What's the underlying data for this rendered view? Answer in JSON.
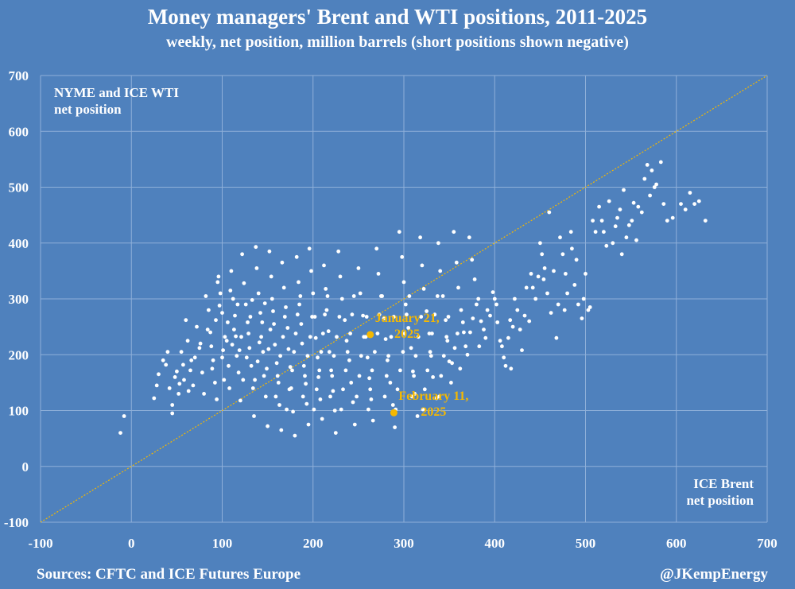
{
  "chart_data": {
    "type": "scatter",
    "title": "Money managers' Brent and WTI positions, 2011-2025",
    "subtitle": "weekly, net position, million barrels (short positions shown negative)",
    "xlabel_lines": [
      "ICE Brent",
      "net position"
    ],
    "ylabel_lines": [
      "NYME and ICE WTI",
      "net position"
    ],
    "xlim": [
      -100,
      700
    ],
    "ylim": [
      -100,
      700
    ],
    "x_ticks": [
      "-100",
      "0",
      "100",
      "200",
      "300",
      "400",
      "500",
      "600",
      "700"
    ],
    "y_ticks": [
      "-100",
      "0",
      "100",
      "200",
      "300",
      "400",
      "500",
      "600",
      "700"
    ],
    "grid": true,
    "reference_line": {
      "from": [
        -100,
        -100
      ],
      "to": [
        700,
        700
      ],
      "color": "#f5b800",
      "style": "dotted"
    },
    "point_color": "#ffffff",
    "highlight_color": "#f5b800",
    "highlights": [
      {
        "x": 263,
        "y": 236,
        "lines": [
          "January 21,",
          "2025"
        ]
      },
      {
        "x": 289,
        "y": 96,
        "lines": [
          "February 11,",
          "2025"
        ]
      }
    ],
    "points": [
      [
        -12,
        60
      ],
      [
        -8,
        90
      ],
      [
        25,
        122
      ],
      [
        28,
        145
      ],
      [
        30,
        165
      ],
      [
        35,
        190
      ],
      [
        40,
        205
      ],
      [
        42,
        140
      ],
      [
        45,
        110
      ],
      [
        45,
        95
      ],
      [
        50,
        170
      ],
      [
        52,
        130
      ],
      [
        55,
        205
      ],
      [
        57,
        182
      ],
      [
        58,
        155
      ],
      [
        60,
        262
      ],
      [
        62,
        225
      ],
      [
        65,
        172
      ],
      [
        68,
        145
      ],
      [
        70,
        195
      ],
      [
        72,
        250
      ],
      [
        75,
        212
      ],
      [
        78,
        168
      ],
      [
        80,
        130
      ],
      [
        82,
        305
      ],
      [
        85,
        280
      ],
      [
        87,
        240
      ],
      [
        88,
        215
      ],
      [
        90,
        190
      ],
      [
        92,
        150
      ],
      [
        94,
        120
      ],
      [
        95,
        330
      ],
      [
        96,
        340
      ],
      [
        98,
        310
      ],
      [
        100,
        275
      ],
      [
        100,
        195
      ],
      [
        102,
        155
      ],
      [
        105,
        225
      ],
      [
        107,
        180
      ],
      [
        108,
        140
      ],
      [
        110,
        350
      ],
      [
        112,
        300
      ],
      [
        114,
        270
      ],
      [
        115,
        233
      ],
      [
        116,
        198
      ],
      [
        118,
        168
      ],
      [
        120,
        118
      ],
      [
        122,
        380
      ],
      [
        124,
        328
      ],
      [
        126,
        290
      ],
      [
        128,
        258
      ],
      [
        130,
        212
      ],
      [
        132,
        180
      ],
      [
        134,
        140
      ],
      [
        135,
        90
      ],
      [
        137,
        393
      ],
      [
        138,
        355
      ],
      [
        140,
        310
      ],
      [
        142,
        275
      ],
      [
        143,
        232
      ],
      [
        145,
        205
      ],
      [
        146,
        162
      ],
      [
        148,
        125
      ],
      [
        150,
        72
      ],
      [
        152,
        385
      ],
      [
        154,
        340
      ],
      [
        155,
        300
      ],
      [
        157,
        255
      ],
      [
        158,
        218
      ],
      [
        160,
        185
      ],
      [
        162,
        150
      ],
      [
        163,
        110
      ],
      [
        165,
        65
      ],
      [
        166,
        365
      ],
      [
        168,
        320
      ],
      [
        170,
        285
      ],
      [
        172,
        248
      ],
      [
        173,
        210
      ],
      [
        175,
        178
      ],
      [
        176,
        140
      ],
      [
        178,
        98
      ],
      [
        180,
        55
      ],
      [
        182,
        375
      ],
      [
        184,
        330
      ],
      [
        185,
        290
      ],
      [
        187,
        255
      ],
      [
        188,
        220
      ],
      [
        190,
        180
      ],
      [
        192,
        148
      ],
      [
        193,
        112
      ],
      [
        195,
        75
      ],
      [
        196,
        390
      ],
      [
        198,
        350
      ],
      [
        200,
        310
      ],
      [
        202,
        268
      ],
      [
        203,
        230
      ],
      [
        205,
        195
      ],
      [
        206,
        160
      ],
      [
        208,
        120
      ],
      [
        210,
        85
      ],
      [
        212,
        360
      ],
      [
        214,
        318
      ],
      [
        215,
        280
      ],
      [
        217,
        242
      ],
      [
        218,
        205
      ],
      [
        220,
        172
      ],
      [
        222,
        135
      ],
      [
        224,
        100
      ],
      [
        225,
        60
      ],
      [
        228,
        385
      ],
      [
        230,
        340
      ],
      [
        232,
        300
      ],
      [
        235,
        262
      ],
      [
        237,
        225
      ],
      [
        240,
        190
      ],
      [
        242,
        150
      ],
      [
        244,
        115
      ],
      [
        246,
        75
      ],
      [
        250,
        355
      ],
      [
        252,
        310
      ],
      [
        255,
        270
      ],
      [
        258,
        232
      ],
      [
        260,
        195
      ],
      [
        262,
        158
      ],
      [
        264,
        120
      ],
      [
        266,
        82
      ],
      [
        270,
        390
      ],
      [
        272,
        345
      ],
      [
        275,
        305
      ],
      [
        278,
        265
      ],
      [
        280,
        228
      ],
      [
        282,
        190
      ],
      [
        285,
        150
      ],
      [
        288,
        110
      ],
      [
        290,
        70
      ],
      [
        295,
        420
      ],
      [
        298,
        375
      ],
      [
        300,
        330
      ],
      [
        302,
        290
      ],
      [
        305,
        248
      ],
      [
        308,
        212
      ],
      [
        310,
        170
      ],
      [
        312,
        130
      ],
      [
        315,
        90
      ],
      [
        318,
        410
      ],
      [
        320,
        360
      ],
      [
        322,
        318
      ],
      [
        325,
        278
      ],
      [
        328,
        238
      ],
      [
        330,
        198
      ],
      [
        332,
        160
      ],
      [
        336,
        122
      ],
      [
        338,
        400
      ],
      [
        340,
        350
      ],
      [
        343,
        305
      ],
      [
        346,
        262
      ],
      [
        348,
        225
      ],
      [
        350,
        188
      ],
      [
        352,
        150
      ],
      [
        355,
        420
      ],
      [
        358,
        365
      ],
      [
        360,
        320
      ],
      [
        363,
        280
      ],
      [
        366,
        240
      ],
      [
        370,
        200
      ],
      [
        372,
        410
      ],
      [
        375,
        370
      ],
      [
        378,
        335
      ],
      [
        382,
        300
      ],
      [
        385,
        260
      ],
      [
        390,
        230
      ],
      [
        395,
        270
      ],
      [
        400,
        300
      ],
      [
        403,
        258
      ],
      [
        406,
        225
      ],
      [
        410,
        195
      ],
      [
        415,
        230
      ],
      [
        418,
        175
      ],
      [
        420,
        250
      ],
      [
        425,
        280
      ],
      [
        430,
        208
      ],
      [
        435,
        320
      ],
      [
        438,
        260
      ],
      [
        440,
        345
      ],
      [
        445,
        300
      ],
      [
        450,
        400
      ],
      [
        452,
        380
      ],
      [
        455,
        355
      ],
      [
        458,
        310
      ],
      [
        460,
        455
      ],
      [
        462,
        275
      ],
      [
        468,
        230
      ],
      [
        472,
        410
      ],
      [
        475,
        380
      ],
      [
        478,
        345
      ],
      [
        480,
        310
      ],
      [
        484,
        420
      ],
      [
        488,
        325
      ],
      [
        492,
        290
      ],
      [
        496,
        265
      ],
      [
        500,
        345
      ],
      [
        505,
        285
      ],
      [
        508,
        440
      ],
      [
        515,
        465
      ],
      [
        520,
        420
      ],
      [
        526,
        475
      ],
      [
        530,
        400
      ],
      [
        535,
        445
      ],
      [
        540,
        380
      ],
      [
        542,
        495
      ],
      [
        548,
        432
      ],
      [
        553,
        472
      ],
      [
        558,
        465
      ],
      [
        565,
        515
      ],
      [
        568,
        540
      ],
      [
        573,
        530
      ],
      [
        578,
        505
      ],
      [
        583,
        545
      ],
      [
        590,
        440
      ],
      [
        610,
        460
      ],
      [
        615,
        490
      ],
      [
        620,
        470
      ],
      [
        632,
        440
      ],
      [
        38,
        182
      ],
      [
        48,
        160
      ],
      [
        53,
        148
      ],
      [
        63,
        135
      ],
      [
        66,
        190
      ],
      [
        76,
        220
      ],
      [
        84,
        245
      ],
      [
        89,
        175
      ],
      [
        93,
        262
      ],
      [
        97,
        288
      ],
      [
        101,
        208
      ],
      [
        103,
        232
      ],
      [
        106,
        258
      ],
      [
        109,
        315
      ],
      [
        111,
        218
      ],
      [
        113,
        245
      ],
      [
        117,
        290
      ],
      [
        119,
        208
      ],
      [
        121,
        232
      ],
      [
        123,
        155
      ],
      [
        127,
        195
      ],
      [
        129,
        238
      ],
      [
        131,
        268
      ],
      [
        133,
        298
      ],
      [
        136,
        155
      ],
      [
        139,
        188
      ],
      [
        141,
        222
      ],
      [
        144,
        258
      ],
      [
        147,
        292
      ],
      [
        149,
        175
      ],
      [
        151,
        210
      ],
      [
        153,
        245
      ],
      [
        156,
        278
      ],
      [
        159,
        125
      ],
      [
        161,
        162
      ],
      [
        164,
        198
      ],
      [
        167,
        232
      ],
      [
        169,
        268
      ],
      [
        171,
        102
      ],
      [
        174,
        138
      ],
      [
        177,
        172
      ],
      [
        179,
        205
      ],
      [
        181,
        238
      ],
      [
        183,
        272
      ],
      [
        186,
        305
      ],
      [
        189,
        125
      ],
      [
        191,
        162
      ],
      [
        194,
        198
      ],
      [
        197,
        232
      ],
      [
        199,
        268
      ],
      [
        201,
        102
      ],
      [
        204,
        138
      ],
      [
        207,
        172
      ],
      [
        209,
        205
      ],
      [
        211,
        238
      ],
      [
        213,
        272
      ],
      [
        216,
        305
      ],
      [
        219,
        125
      ],
      [
        221,
        162
      ],
      [
        223,
        198
      ],
      [
        226,
        232
      ],
      [
        229,
        268
      ],
      [
        231,
        102
      ],
      [
        233,
        138
      ],
      [
        236,
        172
      ],
      [
        238,
        205
      ],
      [
        241,
        238
      ],
      [
        243,
        272
      ],
      [
        245,
        305
      ],
      [
        248,
        125
      ],
      [
        251,
        162
      ],
      [
        253,
        198
      ],
      [
        256,
        232
      ],
      [
        259,
        268
      ],
      [
        261,
        102
      ],
      [
        263,
        138
      ],
      [
        265,
        172
      ],
      [
        268,
        205
      ],
      [
        271,
        238
      ],
      [
        273,
        272
      ],
      [
        276,
        305
      ],
      [
        279,
        125
      ],
      [
        281,
        162
      ],
      [
        283,
        198
      ],
      [
        286,
        232
      ],
      [
        289,
        268
      ],
      [
        291,
        102
      ],
      [
        293,
        138
      ],
      [
        296,
        172
      ],
      [
        299,
        205
      ],
      [
        301,
        238
      ],
      [
        303,
        272
      ],
      [
        306,
        305
      ],
      [
        309,
        125
      ],
      [
        311,
        162
      ],
      [
        313,
        198
      ],
      [
        316,
        232
      ],
      [
        319,
        268
      ],
      [
        321,
        102
      ],
      [
        323,
        138
      ],
      [
        326,
        172
      ],
      [
        329,
        205
      ],
      [
        331,
        238
      ],
      [
        334,
        272
      ],
      [
        337,
        305
      ],
      [
        339,
        125
      ],
      [
        341,
        162
      ],
      [
        344,
        198
      ],
      [
        347,
        232
      ],
      [
        349,
        268
      ],
      [
        353,
        185
      ],
      [
        356,
        212
      ],
      [
        359,
        238
      ],
      [
        362,
        175
      ],
      [
        365,
        258
      ],
      [
        368,
        215
      ],
      [
        373,
        240
      ],
      [
        376,
        265
      ],
      [
        380,
        290
      ],
      [
        383,
        215
      ],
      [
        388,
        245
      ],
      [
        392,
        280
      ],
      [
        398,
        312
      ],
      [
        402,
        290
      ],
      [
        408,
        215
      ],
      [
        412,
        180
      ],
      [
        417,
        262
      ],
      [
        422,
        300
      ],
      [
        428,
        245
      ],
      [
        433,
        270
      ],
      [
        442,
        320
      ],
      [
        448,
        340
      ],
      [
        454,
        335
      ],
      [
        465,
        350
      ],
      [
        470,
        290
      ],
      [
        477,
        280
      ],
      [
        485,
        390
      ],
      [
        490,
        370
      ],
      [
        498,
        300
      ],
      [
        503,
        280
      ],
      [
        511,
        420
      ],
      [
        518,
        440
      ],
      [
        523,
        395
      ],
      [
        533,
        430
      ],
      [
        538,
        460
      ],
      [
        545,
        410
      ],
      [
        551,
        440
      ],
      [
        556,
        405
      ],
      [
        562,
        455
      ],
      [
        571,
        485
      ],
      [
        576,
        500
      ],
      [
        586,
        470
      ],
      [
        596,
        445
      ],
      [
        605,
        470
      ],
      [
        625,
        475
      ]
    ]
  },
  "footer": {
    "source": "Sources: CFTC and ICE Futures Europe",
    "handle": "@JKempEnergy"
  }
}
